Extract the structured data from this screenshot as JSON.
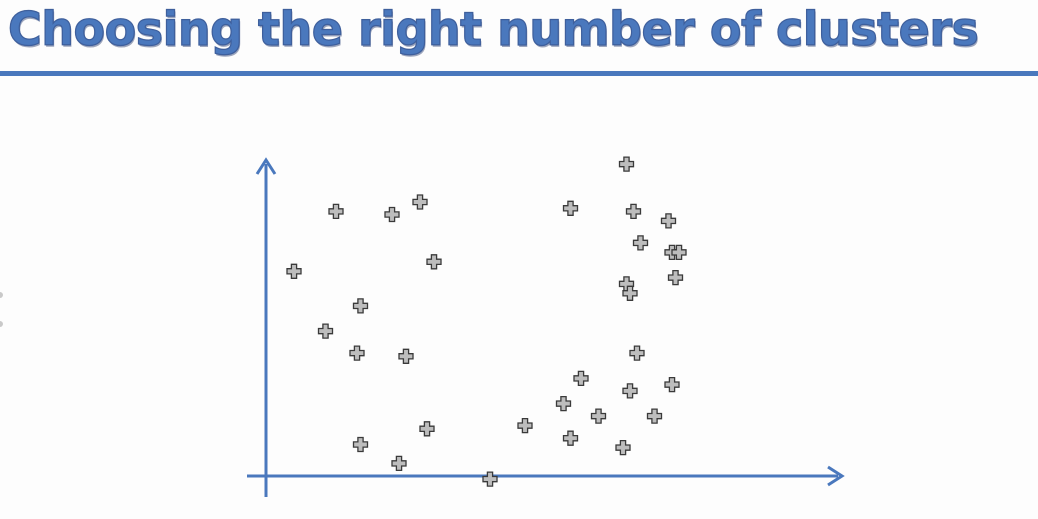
{
  "slide": {
    "title": "Choosing the right number of clusters"
  },
  "colors": {
    "title": "#4a78bd",
    "rule": "#4a78bd",
    "axis": "#4a78bd",
    "marker_fill": "#bdbdbd",
    "marker_stroke": "#3a3a3a"
  },
  "diagram": {
    "marker": "plus",
    "points": [
      {
        "x": 1.0,
        "y": 4.2
      },
      {
        "x": 1.8,
        "y": 4.15
      },
      {
        "x": 2.2,
        "y": 4.35
      },
      {
        "x": 0.4,
        "y": 3.25
      },
      {
        "x": 2.4,
        "y": 3.4
      },
      {
        "x": 1.35,
        "y": 2.7
      },
      {
        "x": 0.85,
        "y": 2.3
      },
      {
        "x": 1.3,
        "y": 1.95
      },
      {
        "x": 2.0,
        "y": 1.9
      },
      {
        "x": 2.3,
        "y": 0.75
      },
      {
        "x": 1.35,
        "y": 0.5
      },
      {
        "x": 3.7,
        "y": 0.8
      },
      {
        "x": 1.9,
        "y": 0.2
      },
      {
        "x": 3.2,
        "y": -0.05
      },
      {
        "x": 5.15,
        "y": 4.95
      },
      {
        "x": 4.35,
        "y": 4.25
      },
      {
        "x": 5.25,
        "y": 4.2
      },
      {
        "x": 5.75,
        "y": 4.05
      },
      {
        "x": 5.35,
        "y": 3.7
      },
      {
        "x": 5.8,
        "y": 3.55
      },
      {
        "x": 5.9,
        "y": 3.55
      },
      {
        "x": 5.85,
        "y": 3.15
      },
      {
        "x": 5.15,
        "y": 3.05
      },
      {
        "x": 5.2,
        "y": 2.9
      },
      {
        "x": 5.3,
        "y": 1.95
      },
      {
        "x": 4.5,
        "y": 1.55
      },
      {
        "x": 5.2,
        "y": 1.35
      },
      {
        "x": 5.8,
        "y": 1.45
      },
      {
        "x": 4.25,
        "y": 1.15
      },
      {
        "x": 4.75,
        "y": 0.95
      },
      {
        "x": 5.55,
        "y": 0.95
      },
      {
        "x": 4.35,
        "y": 0.6
      },
      {
        "x": 5.1,
        "y": 0.45
      }
    ]
  }
}
